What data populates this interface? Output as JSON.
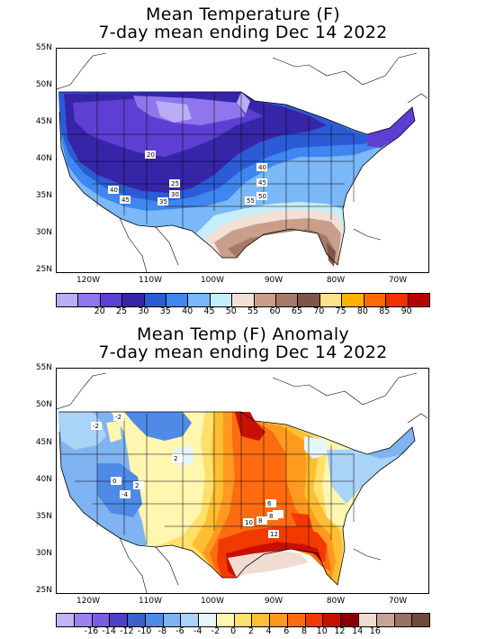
{
  "panels": [
    {
      "title_line1": "Mean Temperature (F)",
      "title_line2": "7-day mean ending Dec 14 2022",
      "lat_labels": [
        "55N",
        "50N",
        "45N",
        "40N",
        "35N",
        "30N",
        "25N"
      ],
      "lon_labels": [
        "120W",
        "110W",
        "100W",
        "90W",
        "80W",
        "70W"
      ],
      "legend": {
        "colors": [
          "#b9aef5",
          "#8f76ec",
          "#5d3fd3",
          "#3725a8",
          "#2c5bd6",
          "#3f86f0",
          "#7bb8f7",
          "#c4eef9",
          "#f1e0d6",
          "#c99f8c",
          "#a67a68",
          "#7d5647",
          "#ffe28a",
          "#ffb300",
          "#ff6a00",
          "#f23000",
          "#b80000"
        ],
        "labels": [
          "20",
          "25",
          "30",
          "35",
          "40",
          "45",
          "50",
          "55",
          "60",
          "65",
          "70",
          "75",
          "80",
          "85",
          "90"
        ]
      },
      "contour_labels": [
        "20",
        "25",
        "30",
        "35",
        "40",
        "45",
        "40",
        "45",
        "50",
        "55"
      ]
    },
    {
      "title_line1": "Mean Temp (F) Anomaly",
      "title_line2": "7-day mean ending Dec 14 2022",
      "lat_labels": [
        "55N",
        "50N",
        "45N",
        "40N",
        "35N",
        "30N",
        "25N"
      ],
      "lon_labels": [
        "120W",
        "110W",
        "100W",
        "90W",
        "80W",
        "70W"
      ],
      "legend": {
        "colors": [
          "#c4b3f7",
          "#9c82ee",
          "#7a5ee0",
          "#4d3fc4",
          "#3a62c9",
          "#4f8ae6",
          "#7fb3f2",
          "#a9d3f7",
          "#e6f6fd",
          "#fff6b0",
          "#ffe06a",
          "#ffbe33",
          "#ff9a1f",
          "#ff6b10",
          "#f23a00",
          "#c81000",
          "#8e0000",
          "#f1dcd2",
          "#c8a395",
          "#9a7264",
          "#6e4a3f"
        ],
        "labels": [
          "-16",
          "-14",
          "-12",
          "-10",
          "-8",
          "-6",
          "-4",
          "-2",
          "0",
          "2",
          "4",
          "6",
          "8",
          "10",
          "12",
          "14",
          "16"
        ]
      },
      "contour_labels": [
        "-2",
        "0",
        "2",
        "2",
        "4",
        "-2",
        "-4",
        "8",
        "10",
        "8",
        "6",
        "12"
      ]
    }
  ]
}
